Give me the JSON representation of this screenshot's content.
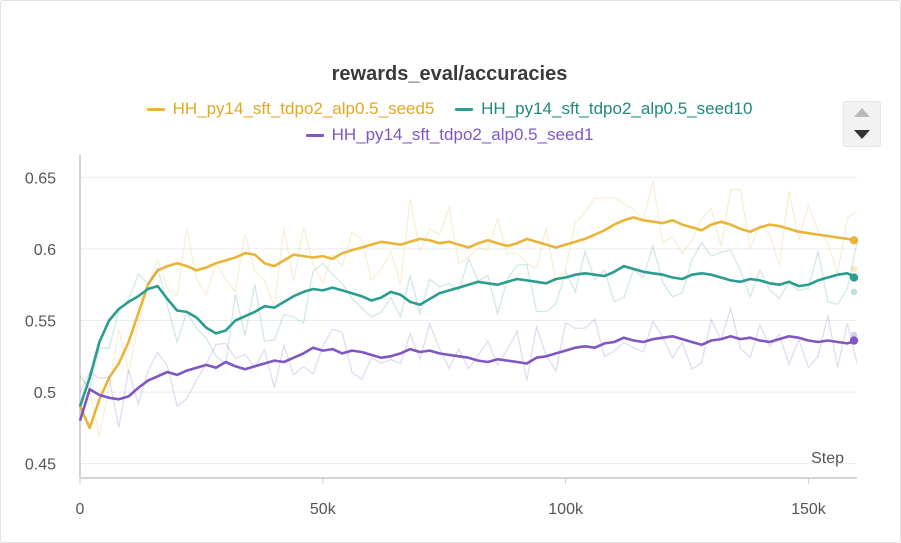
{
  "chart_data": {
    "type": "line",
    "title": "rewards_eval/accuracies",
    "xlabel": "Step",
    "ylabel": "",
    "xlim": [
      0,
      160000
    ],
    "ylim": [
      0.44,
      0.66
    ],
    "x_ticks": [
      0,
      50000,
      100000,
      150000
    ],
    "x_tick_labels": [
      "0",
      "50k",
      "100k",
      "150k"
    ],
    "y_ticks": [
      0.45,
      0.5,
      0.55,
      0.6,
      0.65
    ],
    "y_tick_labels": [
      "0.45",
      "0.5",
      "0.55",
      "0.6",
      "0.65"
    ],
    "grid": "horizontal",
    "legend_position": "top",
    "series": [
      {
        "name": "HH_py14_sft_tdpo2_alp0.5_seed5",
        "color": "#e8b53a",
        "x": [
          0,
          2000,
          4000,
          6000,
          8000,
          10000,
          12000,
          14000,
          16000,
          18000,
          20000,
          22000,
          24000,
          26000,
          28000,
          30000,
          32000,
          34000,
          36000,
          38000,
          40000,
          42000,
          44000,
          46000,
          48000,
          50000,
          52000,
          54000,
          56000,
          58000,
          60000,
          62000,
          64000,
          66000,
          68000,
          70000,
          72000,
          74000,
          76000,
          78000,
          80000,
          82000,
          84000,
          86000,
          88000,
          90000,
          92000,
          94000,
          96000,
          98000,
          100000,
          102000,
          104000,
          106000,
          108000,
          110000,
          112000,
          114000,
          116000,
          118000,
          120000,
          122000,
          124000,
          126000,
          128000,
          130000,
          132000,
          134000,
          136000,
          138000,
          140000,
          142000,
          144000,
          146000,
          148000,
          150000,
          152000,
          154000,
          156000,
          158000,
          160000
        ],
        "values": [
          0.49,
          0.475,
          0.495,
          0.51,
          0.52,
          0.535,
          0.555,
          0.575,
          0.585,
          0.588,
          0.59,
          0.588,
          0.585,
          0.587,
          0.59,
          0.592,
          0.594,
          0.597,
          0.596,
          0.59,
          0.588,
          0.592,
          0.596,
          0.595,
          0.594,
          0.595,
          0.593,
          0.597,
          0.599,
          0.601,
          0.603,
          0.605,
          0.604,
          0.603,
          0.605,
          0.607,
          0.606,
          0.604,
          0.605,
          0.603,
          0.601,
          0.604,
          0.606,
          0.604,
          0.602,
          0.604,
          0.607,
          0.605,
          0.603,
          0.601,
          0.603,
          0.605,
          0.607,
          0.61,
          0.613,
          0.617,
          0.62,
          0.622,
          0.62,
          0.619,
          0.618,
          0.62,
          0.617,
          0.615,
          0.613,
          0.617,
          0.619,
          0.617,
          0.614,
          0.612,
          0.615,
          0.617,
          0.616,
          0.614,
          0.612,
          0.611,
          0.61,
          0.609,
          0.608,
          0.607,
          0.606
        ]
      },
      {
        "name": "HH_py14_sft_tdpo2_alp0.5_seed10",
        "color": "#2a9d8f",
        "x": [
          0,
          2000,
          4000,
          6000,
          8000,
          10000,
          12000,
          14000,
          16000,
          18000,
          20000,
          22000,
          24000,
          26000,
          28000,
          30000,
          32000,
          34000,
          36000,
          38000,
          40000,
          42000,
          44000,
          46000,
          48000,
          50000,
          52000,
          54000,
          56000,
          58000,
          60000,
          62000,
          64000,
          66000,
          68000,
          70000,
          72000,
          74000,
          76000,
          78000,
          80000,
          82000,
          84000,
          86000,
          88000,
          90000,
          92000,
          94000,
          96000,
          98000,
          100000,
          102000,
          104000,
          106000,
          108000,
          110000,
          112000,
          114000,
          116000,
          118000,
          120000,
          122000,
          124000,
          126000,
          128000,
          130000,
          132000,
          134000,
          136000,
          138000,
          140000,
          142000,
          144000,
          146000,
          148000,
          150000,
          152000,
          154000,
          156000,
          158000,
          160000
        ],
        "values": [
          0.49,
          0.51,
          0.535,
          0.55,
          0.558,
          0.563,
          0.567,
          0.572,
          0.574,
          0.565,
          0.557,
          0.556,
          0.552,
          0.545,
          0.541,
          0.543,
          0.55,
          0.553,
          0.556,
          0.56,
          0.559,
          0.563,
          0.567,
          0.57,
          0.572,
          0.571,
          0.573,
          0.571,
          0.569,
          0.567,
          0.564,
          0.566,
          0.57,
          0.568,
          0.563,
          0.561,
          0.565,
          0.569,
          0.571,
          0.573,
          0.575,
          0.577,
          0.576,
          0.575,
          0.577,
          0.579,
          0.578,
          0.577,
          0.576,
          0.579,
          0.58,
          0.582,
          0.583,
          0.582,
          0.581,
          0.584,
          0.588,
          0.586,
          0.584,
          0.583,
          0.582,
          0.58,
          0.579,
          0.582,
          0.583,
          0.582,
          0.58,
          0.578,
          0.577,
          0.579,
          0.578,
          0.576,
          0.575,
          0.577,
          0.574,
          0.575,
          0.578,
          0.58,
          0.582,
          0.583,
          0.58
        ]
      },
      {
        "name": "HH_py14_sft_tdpo2_alp0.5_seed1",
        "color": "#7e57c2",
        "x": [
          0,
          2000,
          4000,
          6000,
          8000,
          10000,
          12000,
          14000,
          16000,
          18000,
          20000,
          22000,
          24000,
          26000,
          28000,
          30000,
          32000,
          34000,
          36000,
          38000,
          40000,
          42000,
          44000,
          46000,
          48000,
          50000,
          52000,
          54000,
          56000,
          58000,
          60000,
          62000,
          64000,
          66000,
          68000,
          70000,
          72000,
          74000,
          76000,
          78000,
          80000,
          82000,
          84000,
          86000,
          88000,
          90000,
          92000,
          94000,
          96000,
          98000,
          100000,
          102000,
          104000,
          106000,
          108000,
          110000,
          112000,
          114000,
          116000,
          118000,
          120000,
          122000,
          124000,
          126000,
          128000,
          130000,
          132000,
          134000,
          136000,
          138000,
          140000,
          142000,
          144000,
          146000,
          148000,
          150000,
          152000,
          154000,
          156000,
          158000,
          160000
        ],
        "values": [
          0.48,
          0.502,
          0.498,
          0.496,
          0.495,
          0.497,
          0.503,
          0.508,
          0.511,
          0.514,
          0.512,
          0.515,
          0.517,
          0.519,
          0.517,
          0.521,
          0.518,
          0.516,
          0.518,
          0.52,
          0.522,
          0.521,
          0.524,
          0.527,
          0.531,
          0.529,
          0.53,
          0.527,
          0.529,
          0.528,
          0.526,
          0.524,
          0.525,
          0.527,
          0.53,
          0.528,
          0.529,
          0.527,
          0.526,
          0.525,
          0.524,
          0.522,
          0.521,
          0.523,
          0.522,
          0.521,
          0.52,
          0.524,
          0.525,
          0.527,
          0.529,
          0.531,
          0.532,
          0.531,
          0.534,
          0.535,
          0.538,
          0.536,
          0.535,
          0.537,
          0.538,
          0.539,
          0.537,
          0.535,
          0.533,
          0.536,
          0.537,
          0.539,
          0.537,
          0.538,
          0.536,
          0.535,
          0.537,
          0.539,
          0.538,
          0.536,
          0.535,
          0.536,
          0.535,
          0.534,
          0.536
        ]
      }
    ]
  }
}
